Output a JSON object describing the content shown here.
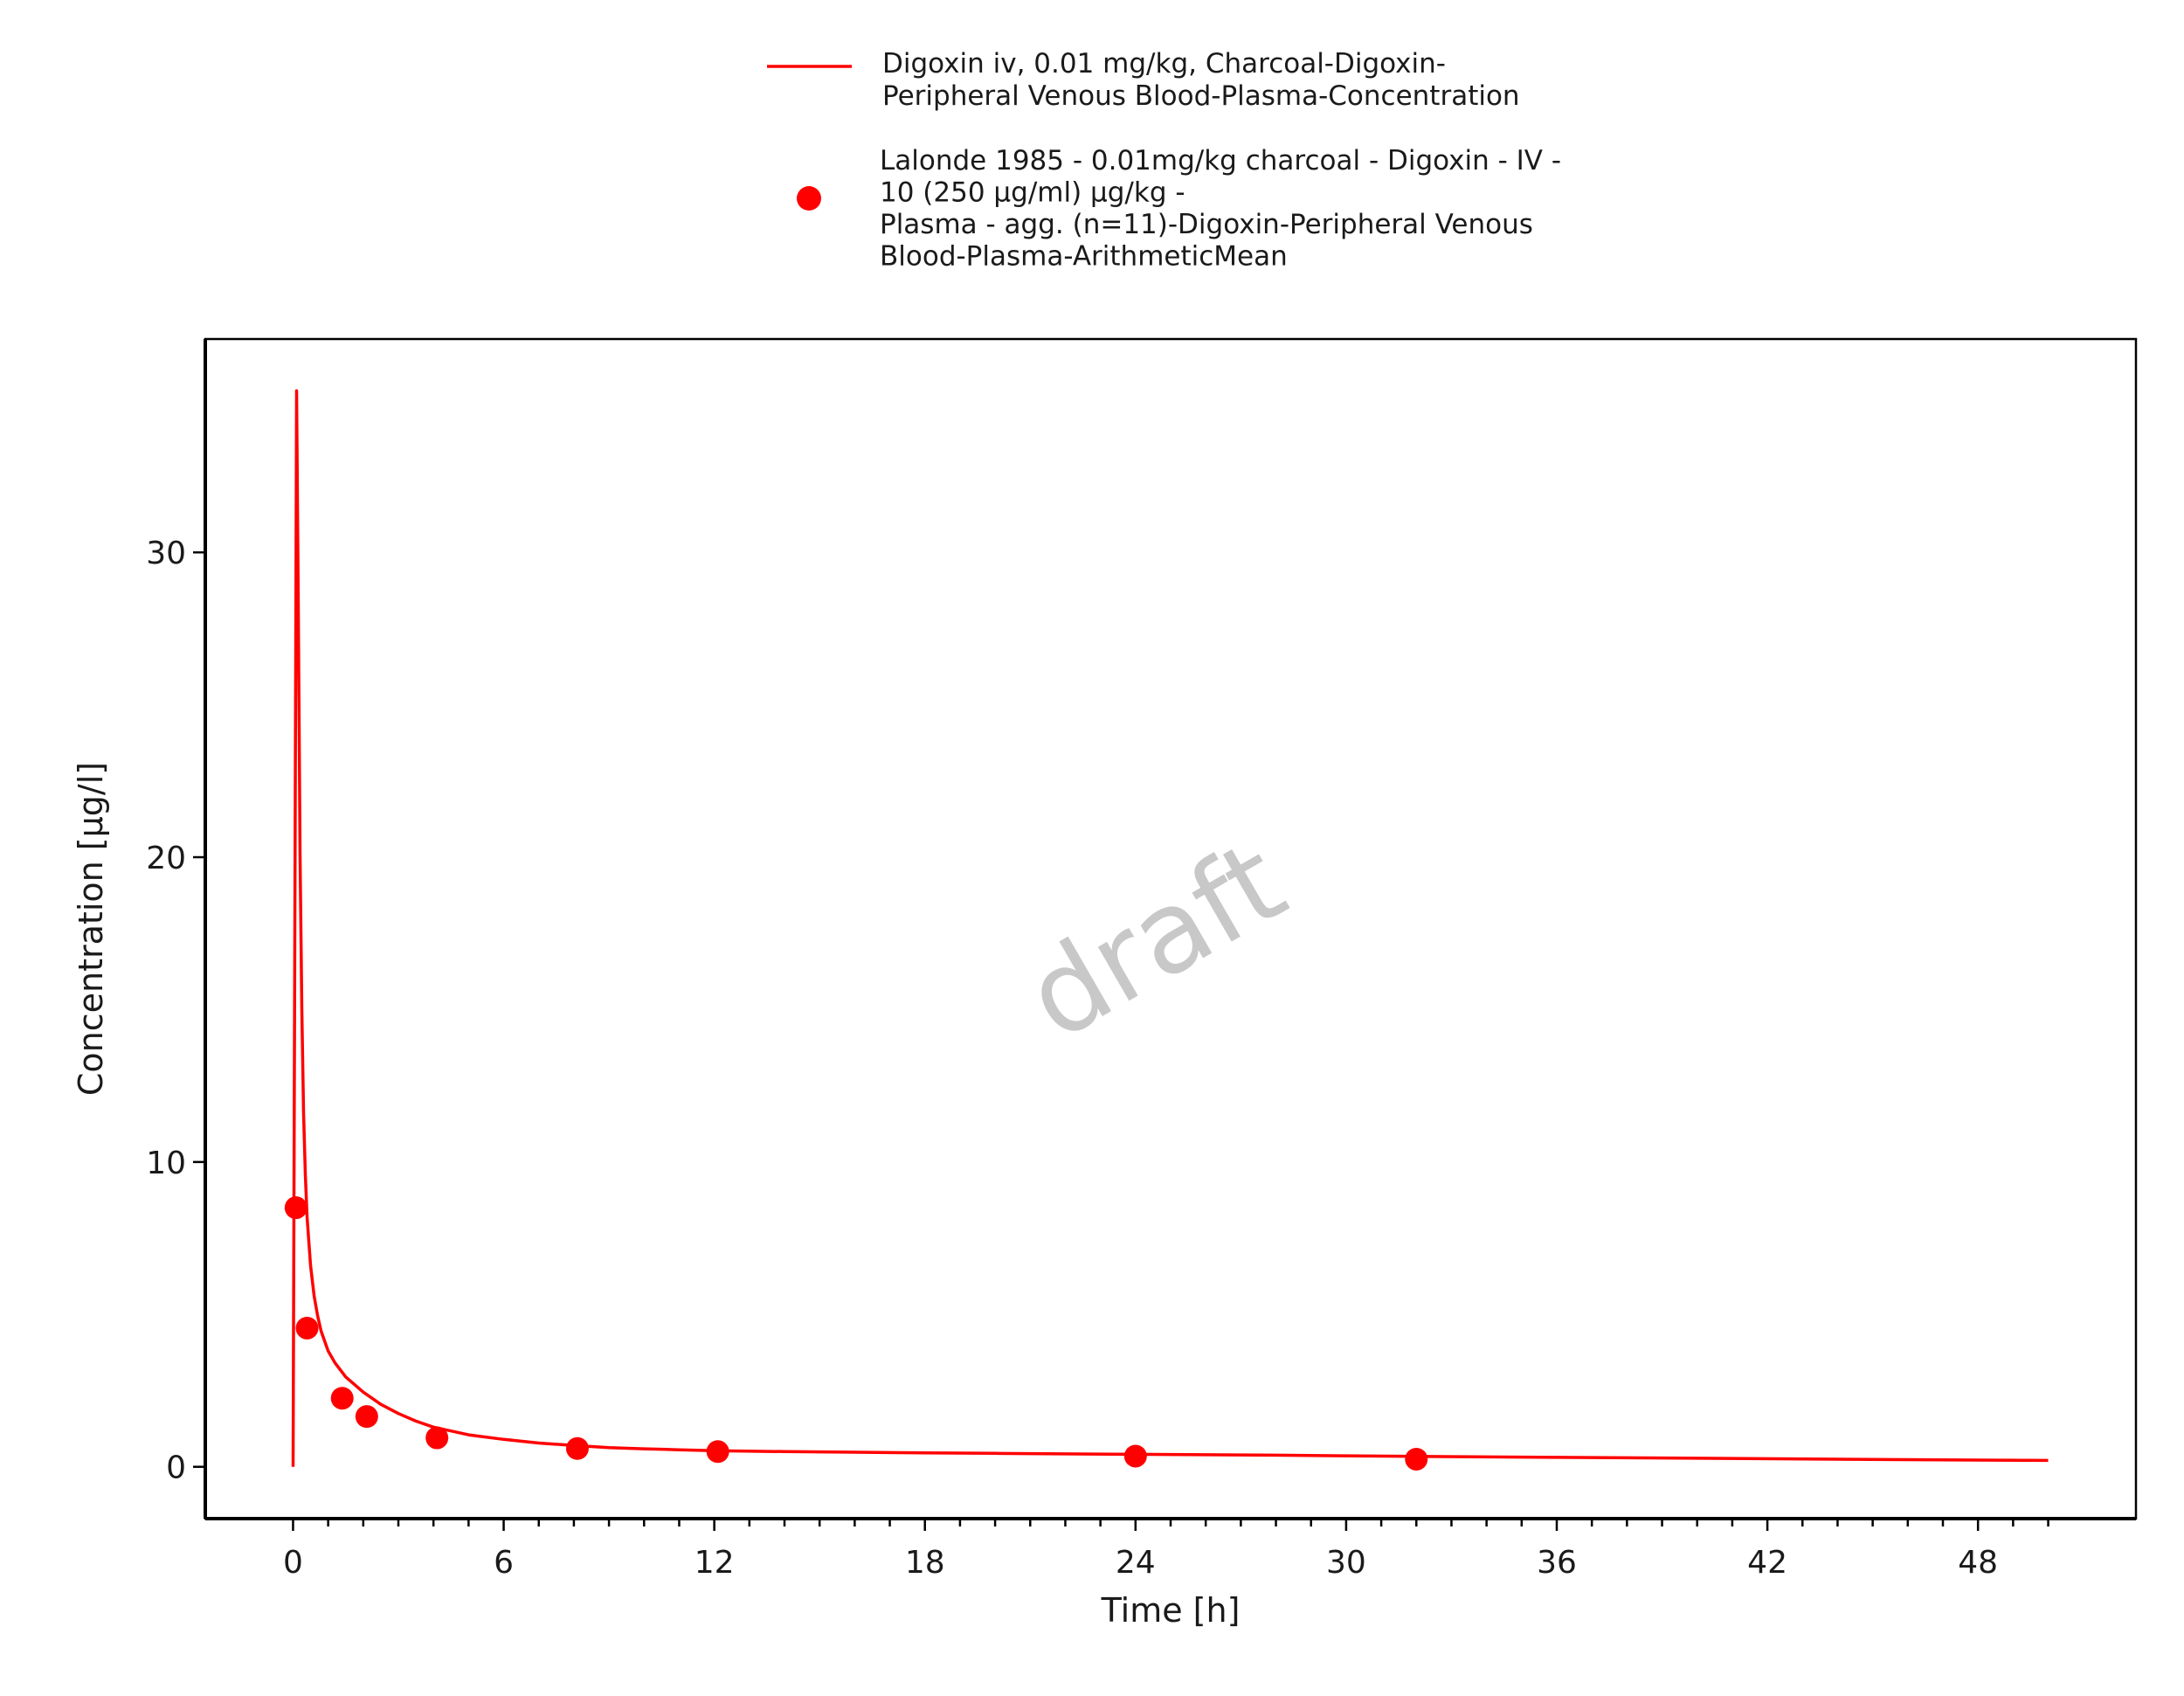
{
  "chart_data": {
    "type": "line",
    "title": "",
    "xlabel": "Time [h]",
    "ylabel": "Concentration [µg/l]",
    "xlim": [
      -2.5,
      52.5
    ],
    "ylim": [
      -1.7,
      37
    ],
    "x_ticks": [
      0,
      6,
      12,
      18,
      24,
      30,
      36,
      42,
      48
    ],
    "x_tick_labels": [
      "0",
      "6",
      "12",
      "18",
      "24",
      "30",
      "36",
      "42",
      "48"
    ],
    "x_minor_step": 1,
    "y_ticks": [
      0,
      10,
      20,
      30
    ],
    "y_tick_labels": [
      "0",
      "10",
      "20",
      "30"
    ],
    "grid": false,
    "legend_position": "top-center",
    "watermark": "draft",
    "series": [
      {
        "name": "Digoxin iv, 0.01 mg/kg, Charcoal-Digoxin-\nPeripheral Venous Blood-Plasma-Concentration",
        "kind": "line",
        "color": "#ff0000",
        "x": [
          0,
          0.1,
          0.15,
          0.2,
          0.25,
          0.3,
          0.35,
          0.4,
          0.5,
          0.6,
          0.7,
          0.8,
          1.0,
          1.2,
          1.5,
          2,
          2.5,
          3,
          3.5,
          4,
          5,
          6,
          7,
          8,
          9,
          10,
          11,
          12,
          14,
          16,
          18,
          20,
          24,
          28,
          32,
          36,
          40,
          44,
          48,
          50
        ],
        "y": [
          0,
          35.3,
          28,
          20,
          15,
          11.6,
          9.6,
          8.2,
          6.6,
          5.6,
          4.95,
          4.45,
          3.8,
          3.4,
          2.95,
          2.45,
          2.05,
          1.75,
          1.5,
          1.3,
          1.05,
          0.9,
          0.78,
          0.7,
          0.63,
          0.59,
          0.56,
          0.53,
          0.5,
          0.48,
          0.46,
          0.44,
          0.41,
          0.38,
          0.34,
          0.31,
          0.28,
          0.25,
          0.22,
          0.21
        ]
      },
      {
        "name": "Lalonde 1985 - 0.01mg/kg charcoal - Digoxin - IV -\n10 (250 µg/ml) µg/kg -\nPlasma - agg. (n=11)-Digoxin-Peripheral Venous\nBlood-Plasma-ArithmeticMean",
        "kind": "scatter",
        "color": "#ff0000",
        "x": [
          0.083,
          0.4,
          1.4,
          2.1,
          4.1,
          8.1,
          12.1,
          24.0,
          32.0
        ],
        "y": [
          8.5,
          4.55,
          2.25,
          1.65,
          0.95,
          0.6,
          0.5,
          0.35,
          0.25
        ]
      }
    ]
  }
}
